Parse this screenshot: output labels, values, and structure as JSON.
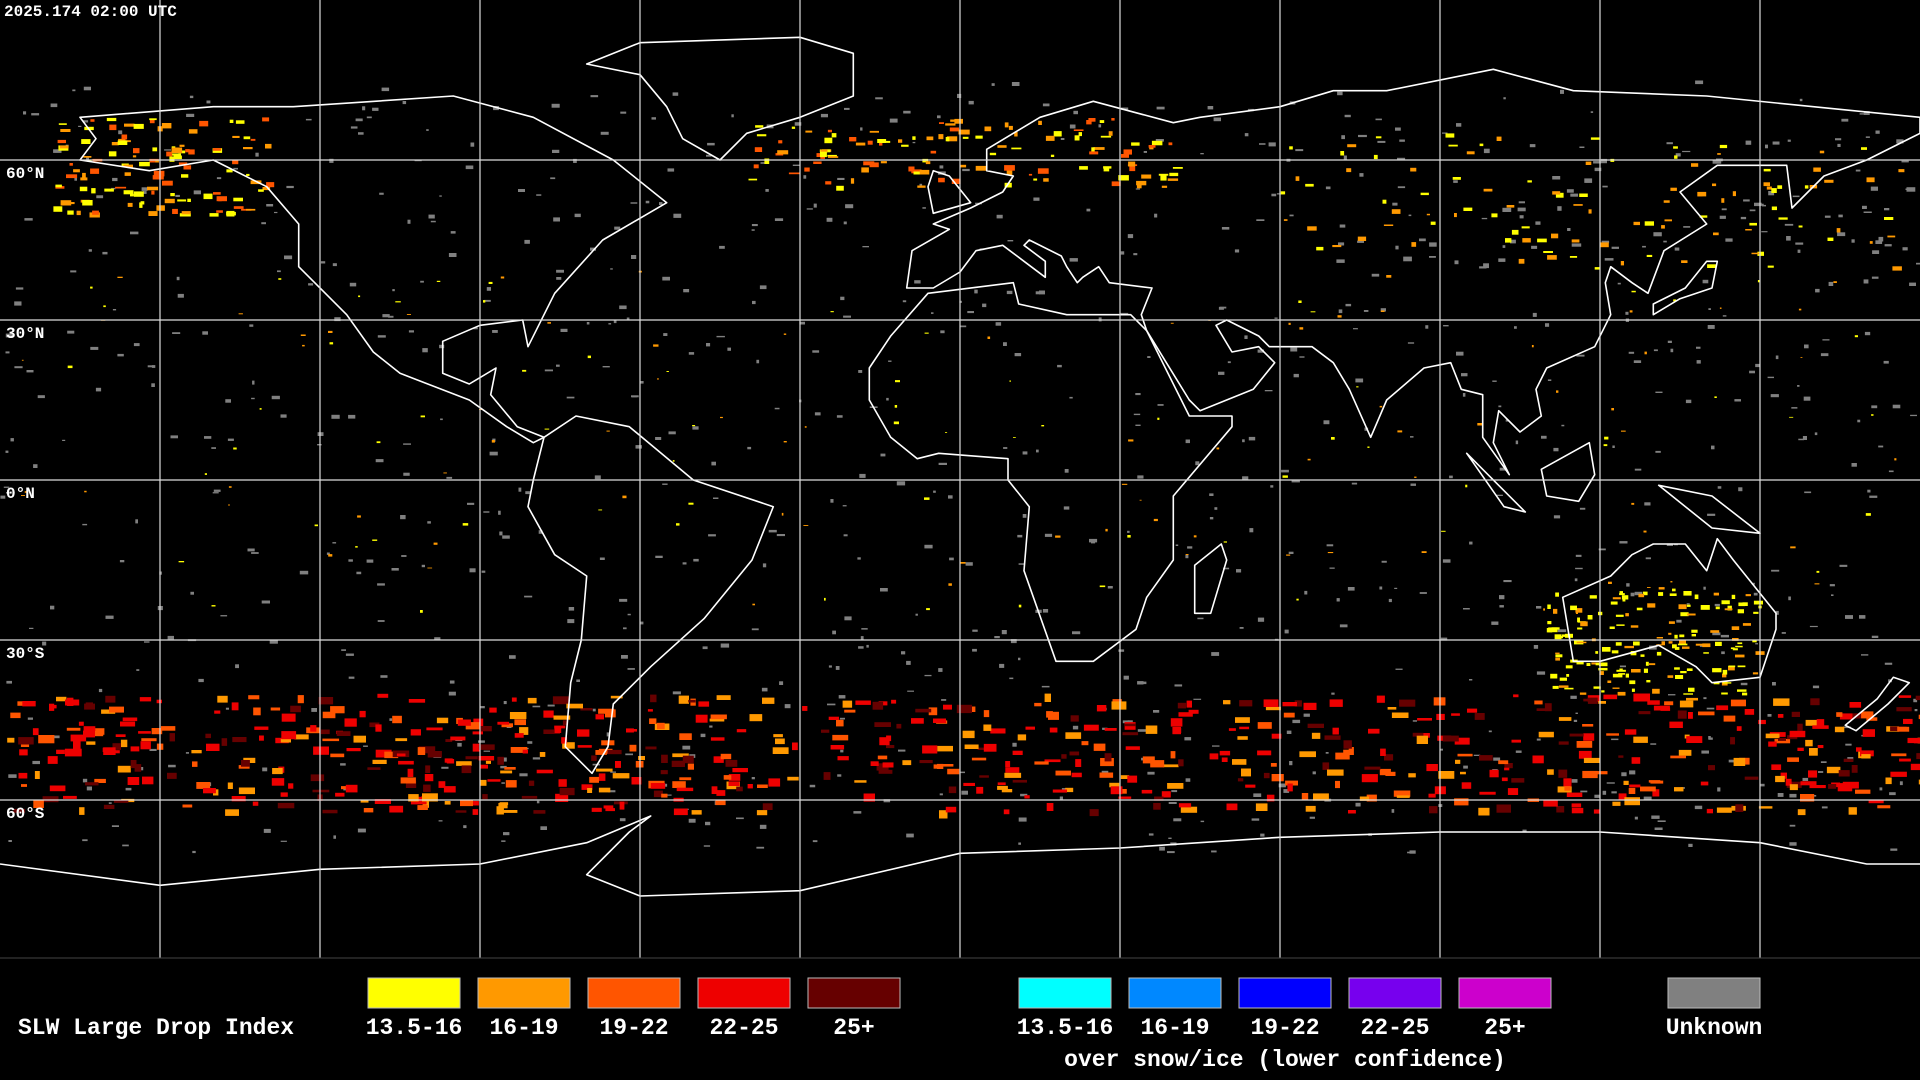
{
  "header": {
    "timestamp": "2025.174 02:00 UTC"
  },
  "map": {
    "lat_labels": [
      "60°N",
      "30°N",
      "0°N",
      "30°S",
      "60°S"
    ]
  },
  "legend": {
    "title": "SLW Large Drop Index",
    "groups": [
      {
        "items": [
          {
            "label": "13.5-16",
            "color": "#ffff00"
          },
          {
            "label": "16-19",
            "color": "#ff9900"
          },
          {
            "label": "19-22",
            "color": "#ff5500"
          },
          {
            "label": "22-25",
            "color": "#ee0000"
          },
          {
            "label": "25+",
            "color": "#660000"
          }
        ]
      },
      {
        "items": [
          {
            "label": "13.5-16",
            "color": "#00ffff"
          },
          {
            "label": "16-19",
            "color": "#0088ff"
          },
          {
            "label": "19-22",
            "color": "#0000ff"
          },
          {
            "label": "22-25",
            "color": "#7700ee"
          },
          {
            "label": "25+",
            "color": "#cc00cc"
          }
        ],
        "caption": "over snow/ice (lower confidence)"
      },
      {
        "items": [
          {
            "label": "Unknown",
            "color": "#808080"
          }
        ]
      }
    ]
  }
}
